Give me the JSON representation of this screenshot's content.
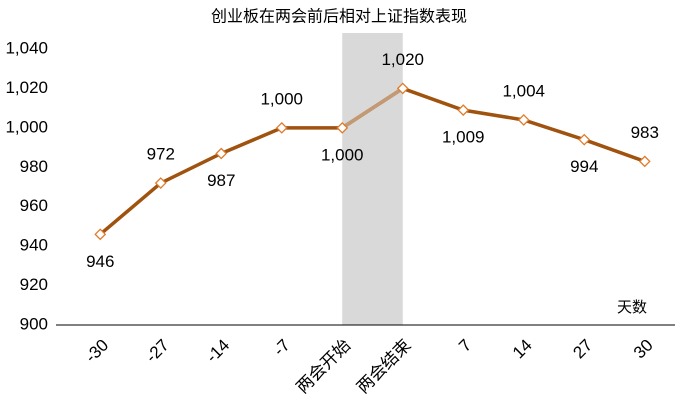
{
  "chart_data": {
    "type": "line",
    "title": "创业板在两会前后相对上证指数表现",
    "x_label": "天数",
    "categories": [
      "-30",
      "-27",
      "-14",
      "-7",
      "两会开始",
      "两会结束",
      "7",
      "14",
      "27",
      "30"
    ],
    "series": [
      {
        "color": "#a0520f",
        "values": [
          946,
          972,
          987,
          1000,
          1000,
          1020,
          1009,
          1004,
          994,
          983
        ],
        "value_labels": [
          "946",
          "972",
          "987",
          "1,000",
          "1,000",
          "1,020",
          "1,009",
          "1,004",
          "994",
          "983"
        ]
      }
    ],
    "shaded": {
      "from": 4,
      "to": 5,
      "color": "#d9d9d9",
      "line_color": "#c49a74"
    },
    "ylim": [
      900,
      1040
    ],
    "yticks": [
      900,
      920,
      940,
      960,
      980,
      {
        "value": 1000,
        "label": "1,000"
      },
      {
        "value": 1020,
        "label": "1,020"
      },
      {
        "value": 1040,
        "label": "1,040"
      }
    ],
    "grid": false
  }
}
